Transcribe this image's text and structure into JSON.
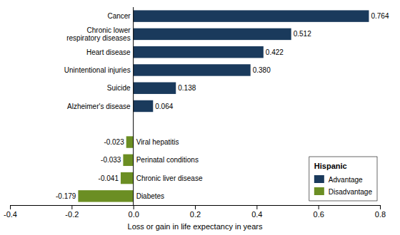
{
  "chart_data": {
    "type": "bar",
    "orientation": "horizontal",
    "categories": [
      "Cancer",
      "Chronic lower\nrespiratory diseases",
      "Heart disease",
      "Unintentional injuries",
      "Suicide",
      "Alzheimer's disease",
      null,
      "Viral hepatitis",
      "Perinatal conditions",
      "Chronic liver disease",
      "Diabetes"
    ],
    "series": [
      {
        "name": "Advantage",
        "color": "#1a3a5c",
        "values": [
          0.764,
          0.512,
          0.422,
          0.38,
          0.138,
          0.064,
          null,
          null,
          null,
          null,
          null
        ],
        "value_labels": [
          "0.764",
          "0.512",
          "0.422",
          "0.380",
          "0.138",
          "0.064",
          null,
          null,
          null,
          null,
          null
        ]
      },
      {
        "name": "Disadvantage",
        "color": "#6b8e23",
        "values": [
          null,
          null,
          null,
          null,
          null,
          null,
          null,
          -0.023,
          -0.033,
          -0.041,
          -0.179
        ],
        "value_labels": [
          null,
          null,
          null,
          null,
          null,
          null,
          null,
          "-0.023",
          "-0.033",
          "-0.041",
          "-0.179"
        ]
      }
    ],
    "stacked": true,
    "data_labels": true,
    "xlabel": "Loss or gain in life expectancy in years",
    "xlim": [
      -0.4,
      0.8
    ],
    "xticks": [
      -0.4,
      -0.2,
      {
        "value": 0,
        "label": "0.0"
      },
      0.2,
      0.4,
      0.6,
      0.8
    ],
    "legend": "lower right",
    "legend_title": "Hispanic"
  }
}
